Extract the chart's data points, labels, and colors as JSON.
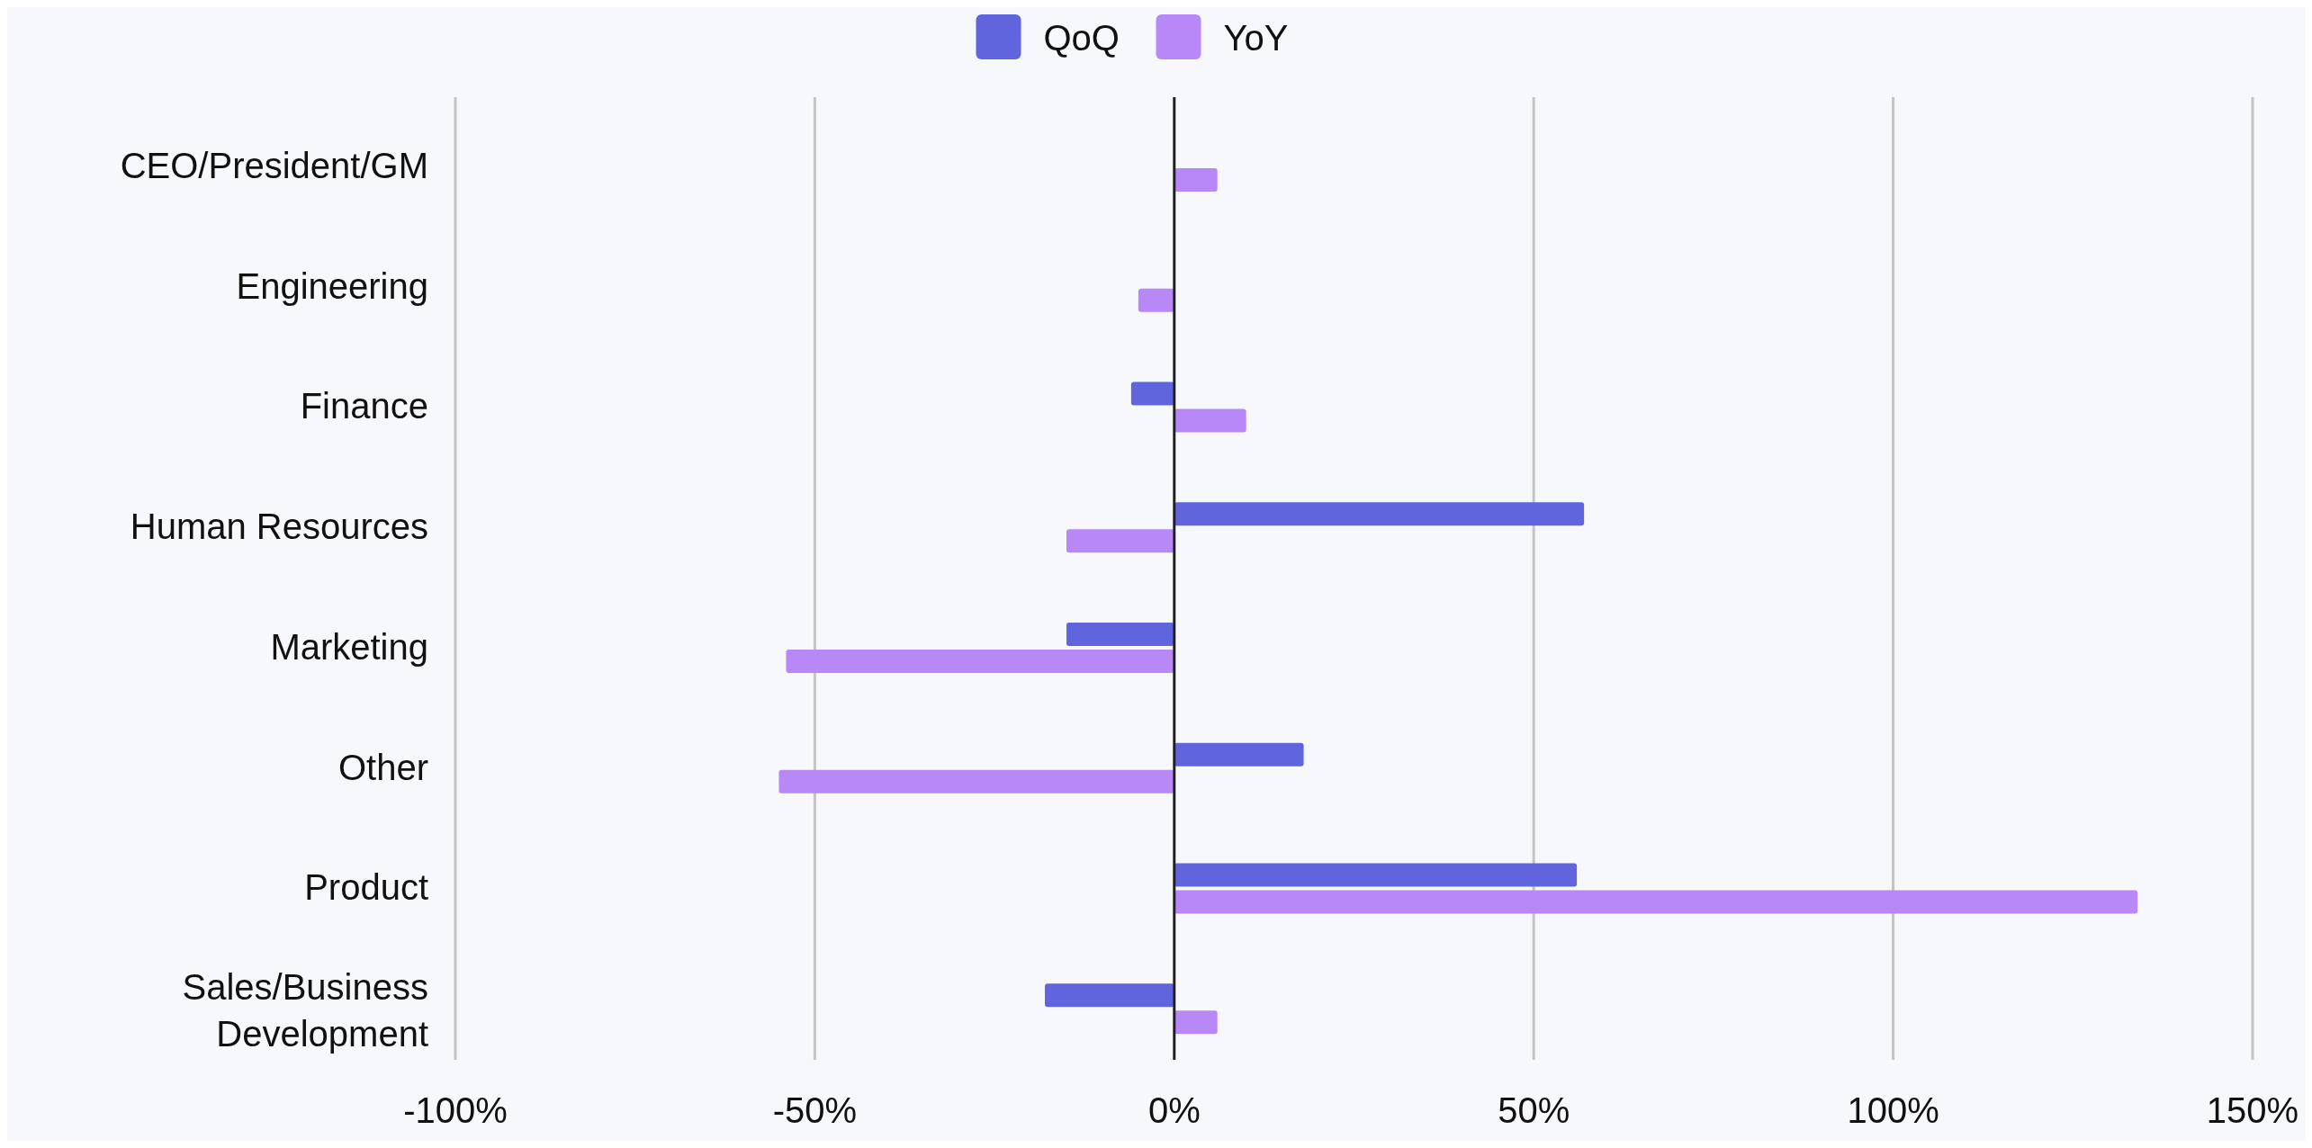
{
  "chart_data": {
    "type": "bar",
    "orientation": "horizontal",
    "categories": [
      "CEO/President/GM",
      "Engineering",
      "Finance",
      "Human Resources",
      "Marketing",
      "Other",
      "Product",
      "Sales/Business Development"
    ],
    "series": [
      {
        "name": "QoQ",
        "color": "#6165dd",
        "values": [
          0,
          0,
          -6,
          57,
          -15,
          18,
          56,
          -18
        ]
      },
      {
        "name": "YoY",
        "color": "#b888f7",
        "values": [
          6,
          -5,
          10,
          -15,
          -54,
          -55,
          134,
          6
        ]
      }
    ],
    "xlim": [
      -100,
      150
    ],
    "xticks": [
      {
        "value": -100,
        "label": "-100%"
      },
      {
        "value": -50,
        "label": "-50%"
      },
      {
        "value": 0,
        "label": "0%"
      },
      {
        "value": 50,
        "label": "50%"
      },
      {
        "value": 100,
        "label": "100%"
      },
      {
        "value": 150,
        "label": "150%"
      }
    ],
    "grid": "x",
    "legend": "top"
  }
}
